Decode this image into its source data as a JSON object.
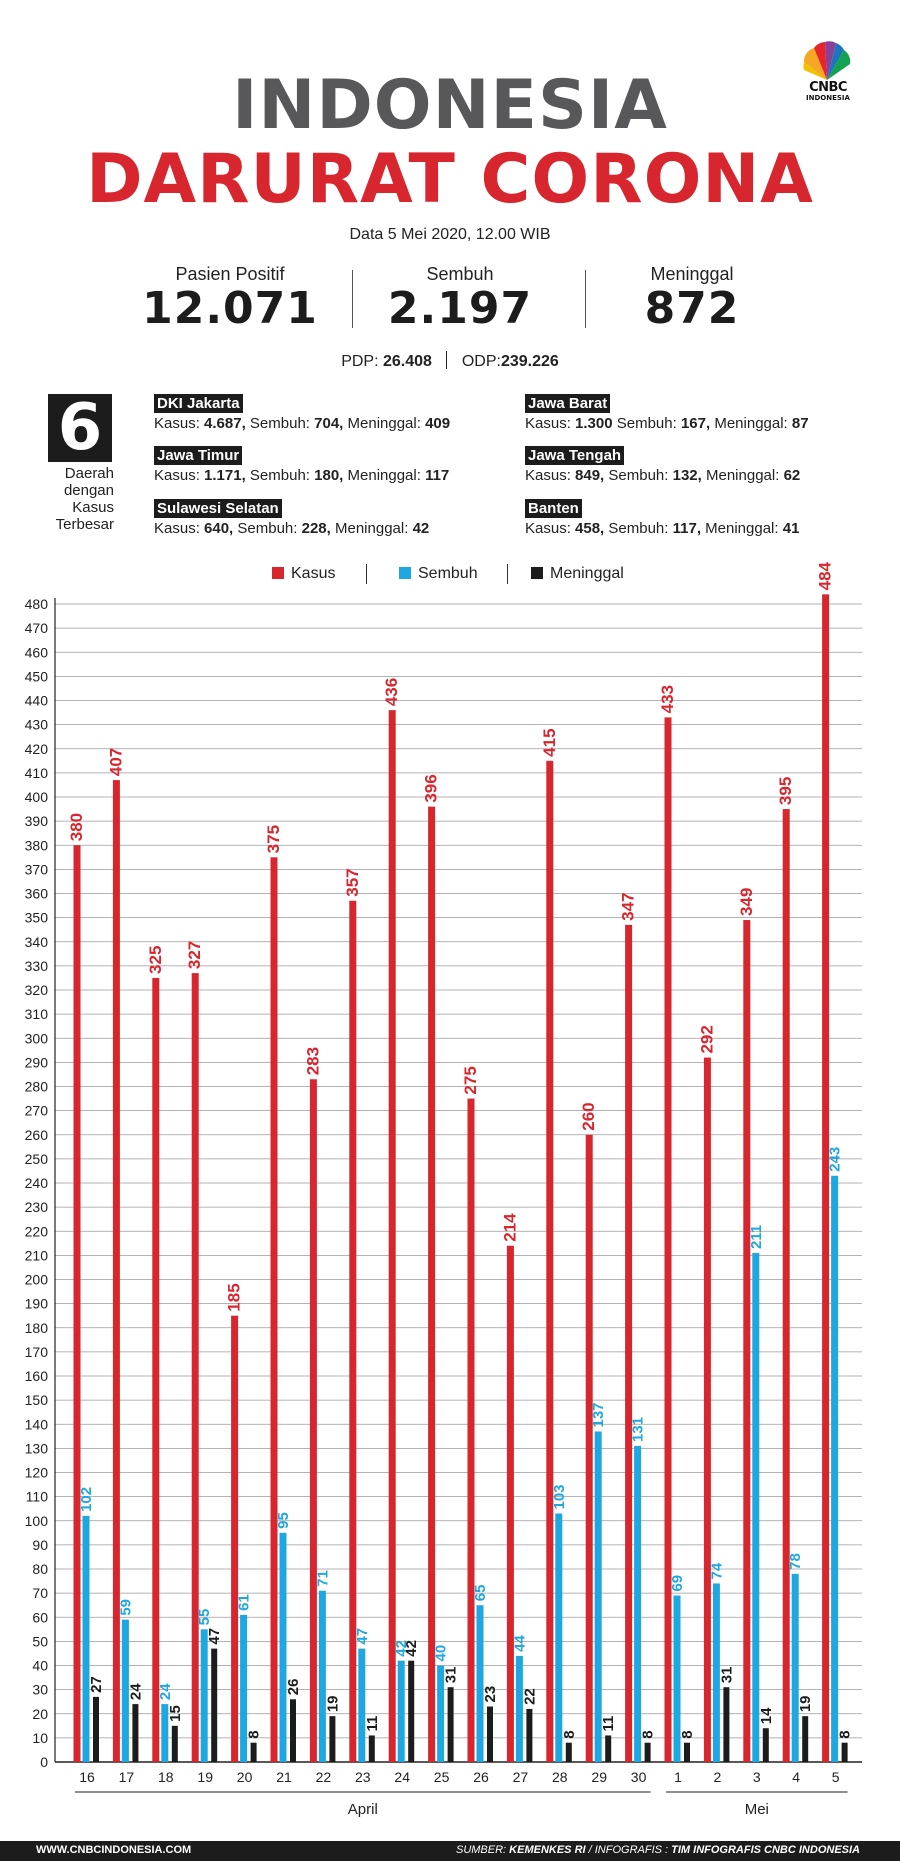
{
  "logo": {
    "name": "CNBC",
    "sub": "INDONESIA"
  },
  "title": {
    "line1": "INDONESIA",
    "line2": "DARURAT CORONA"
  },
  "date": "Data 5 Mei 2020, 12.00 WIB",
  "stats": [
    {
      "label": "Pasien Positif",
      "value": "12.071"
    },
    {
      "label": "Sembuh",
      "value": "2.197"
    },
    {
      "label": "Meninggal",
      "value": "872"
    }
  ],
  "pdp": {
    "label": "PDP:",
    "value": "26.408"
  },
  "odp": {
    "label": "ODP:",
    "value": "239.226"
  },
  "regions_box": {
    "number": "6",
    "caption1": "Daerah",
    "caption2": "dengan",
    "caption3": "Kasus",
    "caption4": "Terbesar"
  },
  "regions": [
    {
      "name": "DKI Jakarta",
      "kasus_label": "Kasus:",
      "kasus": "4.687,",
      "sembuh_label": "Sembuh:",
      "sembuh": "704,",
      "meninggal_label": "Meninggal:",
      "meninggal": "409"
    },
    {
      "name": "Jawa Barat",
      "kasus_label": "Kasus:",
      "kasus": "1.300",
      "sembuh_label": "Sembuh:",
      "sembuh": "167,",
      "meninggal_label": "Meninggal:",
      "meninggal": "87"
    },
    {
      "name": "Jawa Timur",
      "kasus_label": "Kasus:",
      "kasus": "1.171,",
      "sembuh_label": "Sembuh:",
      "sembuh": "180,",
      "meninggal_label": "Meninggal:",
      "meninggal": "117"
    },
    {
      "name": "Jawa Tengah",
      "kasus_label": "Kasus:",
      "kasus": "849,",
      "sembuh_label": "Sembuh:",
      "sembuh": "132,",
      "meninggal_label": "Meninggal:",
      "meninggal": "62"
    },
    {
      "name": "Sulawesi Selatan",
      "kasus_label": "Kasus:",
      "kasus": "640,",
      "sembuh_label": "Sembuh:",
      "sembuh": "228,",
      "meninggal_label": "Meninggal:",
      "meninggal": "42"
    },
    {
      "name": "Banten",
      "kasus_label": "Kasus:",
      "kasus": "458,",
      "sembuh_label": "Sembuh:",
      "sembuh": "117,",
      "meninggal_label": "Meninggal:",
      "meninggal": "41"
    }
  ],
  "legend": {
    "kasus": "Kasus",
    "sembuh": "Sembuh",
    "meninggal": "Meninggal"
  },
  "colors": {
    "kasus": "#d8262e",
    "sembuh": "#1ea7e1",
    "meninggal": "#1c1c1c",
    "title_gray": "#58585a"
  },
  "chart_data": {
    "type": "bar",
    "title": "",
    "xlabel": "",
    "ylabel": "",
    "ylim": [
      0,
      480
    ],
    "ytick_step": 10,
    "grid": true,
    "legend_position": "top-center",
    "categories": [
      "16",
      "17",
      "18",
      "19",
      "20",
      "21",
      "22",
      "23",
      "24",
      "25",
      "26",
      "27",
      "28",
      "29",
      "30",
      "1",
      "2",
      "3",
      "4",
      "5"
    ],
    "month_groups": [
      {
        "label": "April",
        "from": "16",
        "to": "30"
      },
      {
        "label": "Mei",
        "from": "1",
        "to": "5"
      }
    ],
    "series": [
      {
        "name": "Kasus",
        "values": [
          380,
          407,
          325,
          327,
          185,
          375,
          283,
          357,
          436,
          396,
          275,
          214,
          415,
          260,
          347,
          433,
          292,
          349,
          395,
          484
        ]
      },
      {
        "name": "Sembuh",
        "values": [
          102,
          59,
          24,
          55,
          61,
          95,
          71,
          47,
          42,
          40,
          65,
          44,
          103,
          137,
          131,
          69,
          74,
          211,
          78,
          243
        ]
      },
      {
        "name": "Meninggal",
        "values": [
          27,
          24,
          15,
          47,
          8,
          26,
          19,
          11,
          42,
          31,
          23,
          22,
          8,
          11,
          8,
          8,
          31,
          14,
          19,
          8
        ]
      }
    ]
  },
  "footer": {
    "website": "WWW.CNBCINDONESIA.COM",
    "source_label": "SUMBER:",
    "source": "KEMENKES RI",
    "infografis_label": "/ INFOGRAFIS :",
    "infografis": "TIM INFOGRAFIS CNBC INDONESIA"
  }
}
